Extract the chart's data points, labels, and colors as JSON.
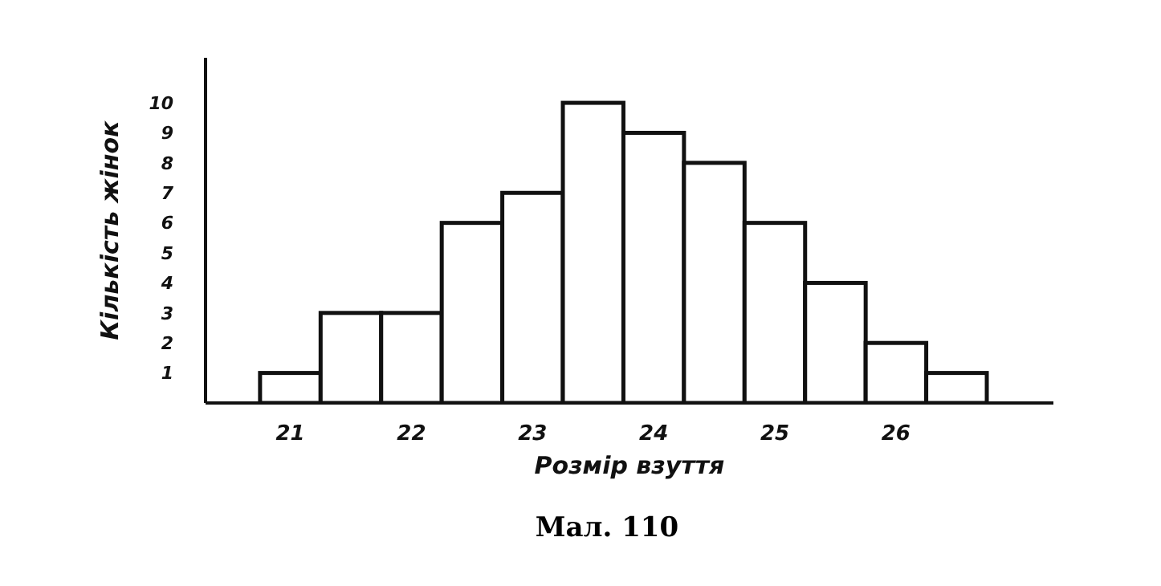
{
  "chart_data": {
    "type": "histogram",
    "xlabel": "Розмір взуття",
    "ylabel": "Кількість жінок",
    "bins": [
      20.75,
      21.25,
      21.75,
      22.25,
      22.75,
      23.25,
      23.75,
      24.25,
      24.75,
      25.25,
      25.75,
      26.25,
      26.75
    ],
    "values": [
      1,
      3,
      3,
      6,
      7,
      10,
      9,
      8,
      6,
      4,
      2,
      1
    ],
    "color": "#ffffff",
    "xlim": [
      20.3,
      27.3
    ],
    "xticks": [
      21,
      22,
      23,
      24,
      25,
      26
    ],
    "ylim": [
      0,
      11.5
    ],
    "yticks": [
      1,
      2,
      3,
      4,
      5,
      6,
      7,
      8,
      9,
      10
    ],
    "grid": false,
    "annotations": [
      "Мал. 110"
    ]
  }
}
